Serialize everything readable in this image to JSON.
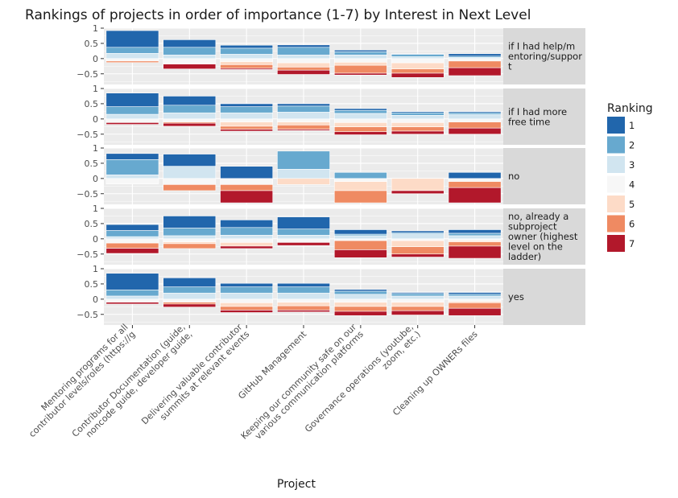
{
  "chart_data": {
    "type": "bar",
    "title": "Rankings of projects in order of importance (1-7) by Interest in Next Level",
    "xlabel": "Project",
    "ylabel": "",
    "ylim": [
      -0.85,
      1.0
    ],
    "y_ticks": [
      1,
      0.5,
      0,
      -0.5
    ],
    "y_tick_labels": [
      "1",
      "0.5",
      "0",
      "−0.5"
    ],
    "grid": true,
    "legend_position": "right",
    "legend_title": "Ranking",
    "rank_labels": [
      "1",
      "2",
      "3",
      "4",
      "5",
      "6",
      "7"
    ],
    "rank_colors": [
      "#2166ac",
      "#67a9cf",
      "#d1e5f0",
      "#f7f7f7",
      "#fddbc7",
      "#ef8a62",
      "#b2182b"
    ],
    "categories": [
      [
        "Mentoring programs for all",
        "contributor levels/roles (https://g"
      ],
      [
        "Contributor Documentation (guide,",
        "noncode guide, developer guide,"
      ],
      [
        "Delivering valuable contributor",
        "summits at relevant events"
      ],
      [
        "GitHub Management"
      ],
      [
        "Keeping our community safe on our",
        "various communication platforms"
      ],
      [
        "Governance operations (youtube,",
        "zoom, etc.)"
      ],
      [
        "Cleaning up OWNERs files"
      ]
    ],
    "facets": [
      {
        "label": [
          "if I had help/m",
          "entoring/suppor",
          "t"
        ],
        "stacks": [
          [
            0.55,
            0.2,
            0.17,
            0.08,
            0.0,
            0.05,
            0.0
          ],
          [
            0.25,
            0.25,
            0.12,
            0.16,
            0.02,
            0.0,
            0.16
          ],
          [
            0.1,
            0.2,
            0.14,
            0.1,
            0.1,
            0.12,
            0.04
          ],
          [
            0.08,
            0.25,
            0.12,
            0.14,
            0.14,
            0.1,
            0.14
          ],
          [
            0.06,
            0.1,
            0.12,
            0.12,
            0.1,
            0.26,
            0.06
          ],
          [
            0.02,
            0.08,
            0.06,
            0.14,
            0.2,
            0.14,
            0.14
          ],
          [
            0.08,
            0.04,
            0.04,
            0.08,
            0.0,
            0.22,
            0.26
          ]
        ]
      },
      {
        "label": [
          "if I had more",
          "free time"
        ],
        "stacks": [
          [
            0.45,
            0.25,
            0.15,
            0.12,
            0.0,
            0.0,
            0.06
          ],
          [
            0.3,
            0.25,
            0.2,
            0.1,
            0.0,
            0.04,
            0.1
          ],
          [
            0.1,
            0.2,
            0.2,
            0.1,
            0.14,
            0.1,
            0.06
          ],
          [
            0.08,
            0.2,
            0.22,
            0.1,
            0.1,
            0.14,
            0.04
          ],
          [
            0.06,
            0.1,
            0.18,
            0.12,
            0.14,
            0.16,
            0.1
          ],
          [
            0.04,
            0.08,
            0.12,
            0.12,
            0.14,
            0.14,
            0.1
          ],
          [
            0.04,
            0.06,
            0.14,
            0.1,
            0.0,
            0.2,
            0.2
          ]
        ]
      },
      {
        "label": [
          "no"
        ],
        "stacks": [
          [
            0.2,
            0.5,
            0.12,
            0.18,
            0.0,
            0.0,
            0.0
          ],
          [
            0.4,
            0.0,
            0.4,
            0.2,
            0.0,
            0.2,
            0.0
          ],
          [
            0.4,
            0.0,
            0.0,
            0.2,
            0.0,
            0.2,
            0.4
          ],
          [
            0.0,
            0.6,
            0.3,
            0.0,
            0.2,
            0.0,
            0.0
          ],
          [
            0.0,
            0.2,
            0.0,
            0.1,
            0.3,
            0.4,
            0.0
          ],
          [
            0.0,
            0.0,
            0.0,
            0.0,
            0.4,
            0.0,
            0.1
          ],
          [
            0.2,
            0.0,
            0.0,
            0.1,
            0.0,
            0.2,
            0.5
          ]
        ]
      },
      {
        "label": [
          "no, already a",
          "subproject",
          "owner (highest",
          "level on the",
          "ladder)"
        ],
        "stacks": [
          [
            0.2,
            0.2,
            0.07,
            0.14,
            0.0,
            0.17,
            0.17
          ],
          [
            0.4,
            0.25,
            0.1,
            0.1,
            0.06,
            0.16,
            0.0
          ],
          [
            0.25,
            0.25,
            0.12,
            0.12,
            0.12,
            0.0,
            0.08
          ],
          [
            0.4,
            0.2,
            0.12,
            0.12,
            0.0,
            0.0,
            0.1
          ],
          [
            0.15,
            0.05,
            0.1,
            0.06,
            0.0,
            0.3,
            0.26
          ],
          [
            0.06,
            0.04,
            0.16,
            0.06,
            0.2,
            0.24,
            0.1
          ],
          [
            0.12,
            0.08,
            0.1,
            0.06,
            0.04,
            0.14,
            0.4
          ]
        ]
      },
      {
        "label": [
          "yes"
        ],
        "stacks": [
          [
            0.55,
            0.2,
            0.1,
            0.1,
            0.0,
            0.0,
            0.06
          ],
          [
            0.3,
            0.2,
            0.2,
            0.1,
            0.0,
            0.06,
            0.1
          ],
          [
            0.12,
            0.2,
            0.2,
            0.12,
            0.12,
            0.12,
            0.08
          ],
          [
            0.12,
            0.2,
            0.2,
            0.1,
            0.12,
            0.14,
            0.06
          ],
          [
            0.06,
            0.1,
            0.16,
            0.1,
            0.14,
            0.16,
            0.14
          ],
          [
            0.04,
            0.08,
            0.1,
            0.1,
            0.14,
            0.14,
            0.14
          ],
          [
            0.06,
            0.06,
            0.1,
            0.08,
            0.04,
            0.18,
            0.24
          ]
        ]
      }
    ]
  }
}
